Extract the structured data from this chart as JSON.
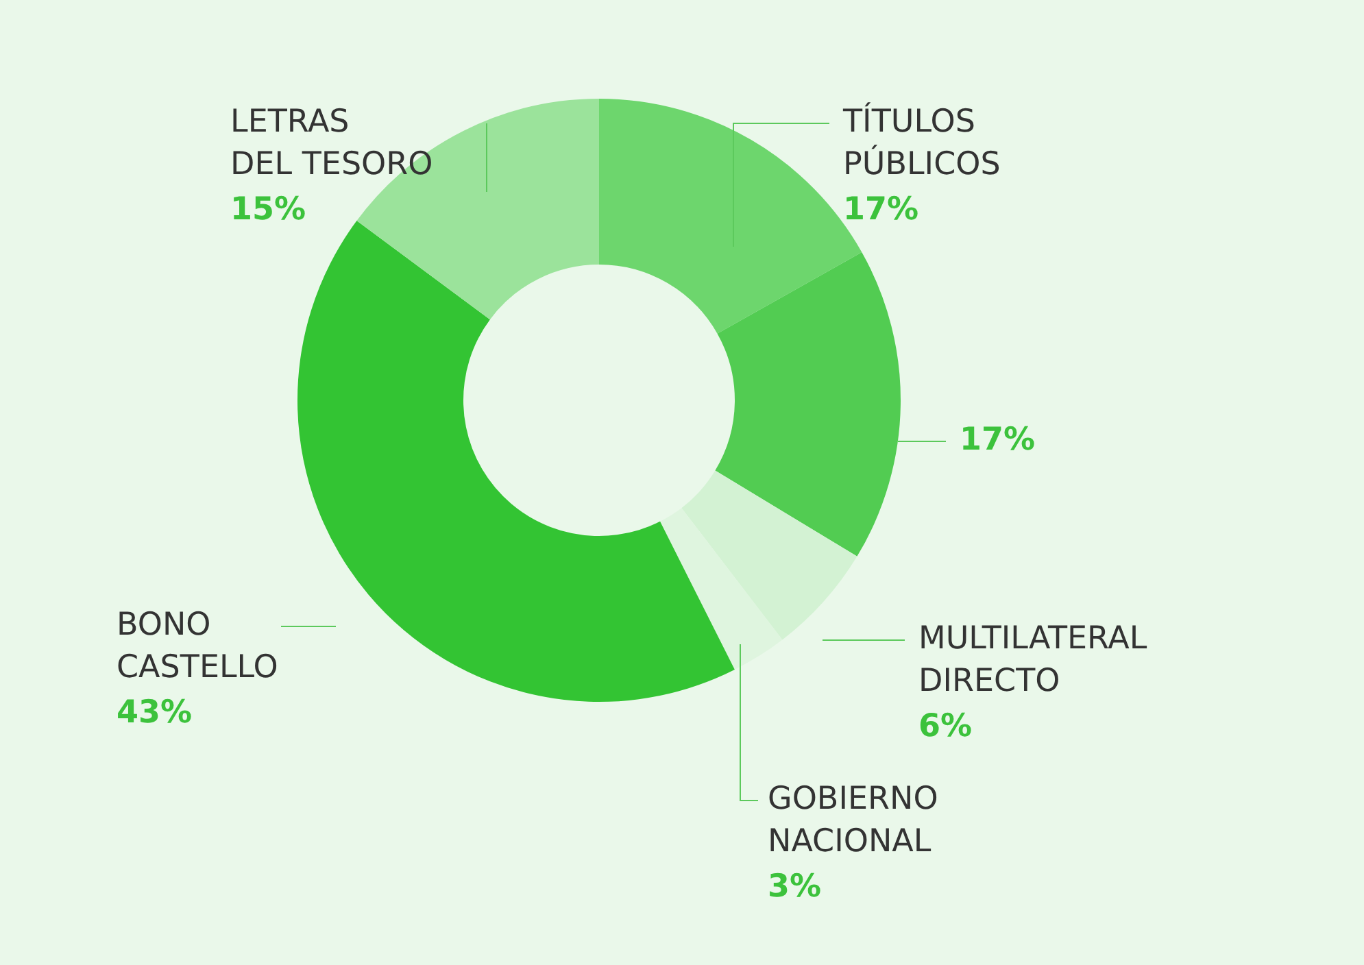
{
  "chart_data": {
    "type": "donut",
    "categories": [
      "TÍTULOS PÚBLICOS",
      null,
      "MULTILATERAL DIRECTO",
      "GOBIERNO NACIONAL",
      "BONO CASTELLO",
      "LETRAS DEL TESORO"
    ],
    "values": [
      17,
      17,
      6,
      3,
      43,
      15
    ],
    "colors": [
      "#6dd66d",
      "#52cc52",
      "#d3f2d3",
      "#dff5df",
      "#33c433",
      "#9be39b"
    ],
    "value_labels": [
      "17%",
      "17%",
      "6%",
      "3%",
      "43%",
      "15%"
    ],
    "legend": false
  }
}
